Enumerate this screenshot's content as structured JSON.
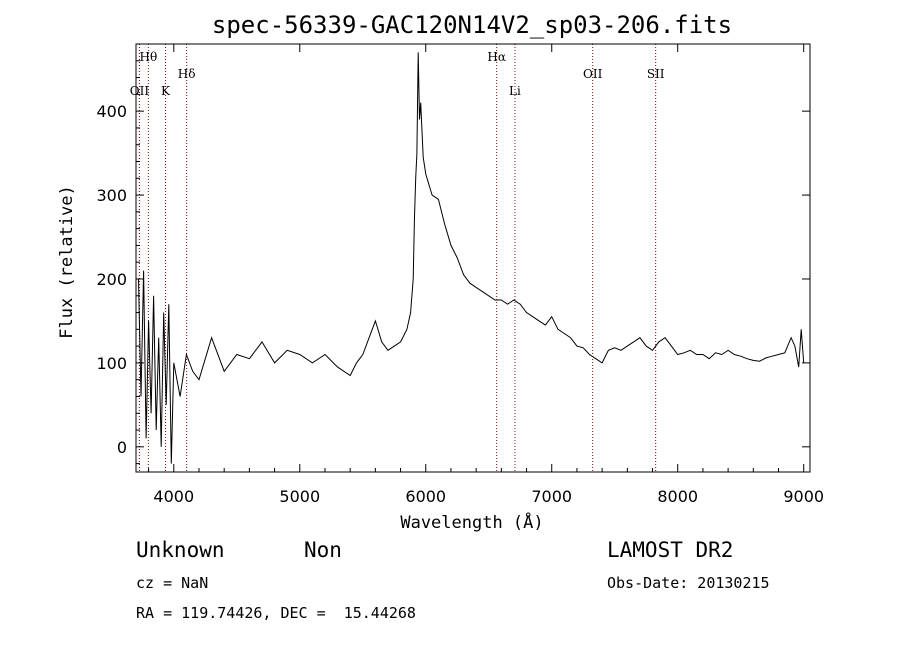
{
  "chart_data": {
    "type": "line",
    "title": "spec-56339-GAC120N14V2_sp03-206.fits",
    "xlabel": "Wavelength (Å)",
    "ylabel": "Flux (relative)",
    "xlim": [
      3700,
      9050
    ],
    "ylim": [
      -30,
      480
    ],
    "x_ticks": [
      4000,
      5000,
      6000,
      7000,
      8000,
      9000
    ],
    "y_ticks": [
      0,
      100,
      200,
      300,
      400
    ],
    "grid": false,
    "series_color": "#000000",
    "marker_color": "#8b0000",
    "spectral_lines": [
      {
        "label": "Hθ",
        "wavelength": 3798
      },
      {
        "label": "OII",
        "wavelength": 3727
      },
      {
        "label": "K",
        "wavelength": 3934
      },
      {
        "label": "Hδ",
        "wavelength": 4102
      },
      {
        "label": "Hα",
        "wavelength": 6563
      },
      {
        "label": "Li",
        "wavelength": 6708
      },
      {
        "label": "OII",
        "wavelength": 7325
      },
      {
        "label": "SII",
        "wavelength": 7825
      }
    ],
    "series": [
      {
        "x": [
          3720,
          3740,
          3760,
          3780,
          3800,
          3820,
          3840,
          3860,
          3880,
          3900,
          3920,
          3940,
          3960,
          3980,
          4000,
          4050,
          4100,
          4150,
          4200,
          4300,
          4400,
          4500,
          4600,
          4700,
          4800,
          4900,
          5000,
          5100,
          5200,
          5300,
          5400,
          5450,
          5500,
          5550,
          5600,
          5650,
          5700,
          5750,
          5800,
          5850,
          5880,
          5900,
          5910,
          5920,
          5930,
          5940,
          5950,
          5960,
          5980,
          6000,
          6050,
          6100,
          6150,
          6200,
          6250,
          6300,
          6350,
          6400,
          6450,
          6500,
          6550,
          6600,
          6650,
          6700,
          6750,
          6800,
          6850,
          6900,
          6950,
          7000,
          7050,
          7100,
          7150,
          7200,
          7250,
          7300,
          7350,
          7400,
          7450,
          7500,
          7550,
          7600,
          7650,
          7700,
          7750,
          7800,
          7850,
          7900,
          7950,
          8000,
          8050,
          8100,
          8150,
          8200,
          8250,
          8300,
          8350,
          8400,
          8450,
          8500,
          8550,
          8600,
          8650,
          8700,
          8750,
          8800,
          8850,
          8900,
          8930,
          8960,
          8980,
          9000
        ],
        "y": [
          200,
          60,
          210,
          10,
          150,
          40,
          180,
          20,
          130,
          0,
          160,
          50,
          170,
          -20,
          100,
          60,
          110,
          90,
          80,
          130,
          90,
          110,
          105,
          125,
          100,
          115,
          110,
          100,
          110,
          95,
          85,
          100,
          110,
          130,
          150,
          125,
          115,
          120,
          125,
          140,
          160,
          200,
          270,
          320,
          350,
          470,
          390,
          410,
          345,
          325,
          300,
          295,
          265,
          240,
          225,
          205,
          195,
          190,
          185,
          180,
          175,
          175,
          170,
          175,
          170,
          160,
          155,
          150,
          145,
          155,
          140,
          135,
          130,
          120,
          118,
          110,
          105,
          100,
          115,
          118,
          115,
          120,
          125,
          130,
          120,
          115,
          125,
          130,
          120,
          110,
          112,
          115,
          110,
          110,
          105,
          112,
          110,
          115,
          110,
          108,
          105,
          103,
          102,
          106,
          108,
          110,
          112,
          130,
          120,
          95,
          140,
          100
        ]
      }
    ]
  },
  "info": {
    "object_class": "Unknown",
    "subclass": "Non",
    "survey": "LAMOST DR2",
    "redshift": "cz = NaN",
    "obs_date": "Obs-Date: 20130215",
    "coords": "RA = 119.74426, DEC =  15.44268"
  }
}
